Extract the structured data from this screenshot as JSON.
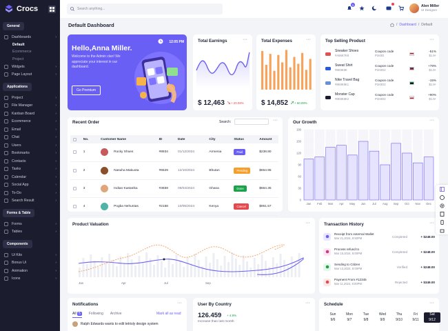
{
  "app": {
    "name": "Crocs"
  },
  "search": {
    "placeholder": "Search anything..."
  },
  "notifications_count": "5",
  "user": {
    "name": "Alen Miller",
    "role": "UI Designer"
  },
  "page": {
    "title": "Default Dashboard",
    "breadcrumb": [
      "Dashboard",
      "Default"
    ]
  },
  "sidebar": {
    "sections": [
      "General",
      "Applications",
      "Forms & Table",
      "Components"
    ],
    "general": [
      {
        "label": "Dashboards",
        "icon": "home-icon"
      },
      {
        "label": "Default",
        "sub": true,
        "active": true
      },
      {
        "label": "Ecommerce",
        "sub": true
      },
      {
        "label": "Project",
        "sub": true
      },
      {
        "label": "Widgets",
        "icon": "widgets-icon"
      },
      {
        "label": "Page Layout",
        "icon": "layout-icon"
      }
    ],
    "applications": [
      {
        "label": "Project"
      },
      {
        "label": "File Manager"
      },
      {
        "label": "Kanban Board"
      },
      {
        "label": "Ecommerce"
      },
      {
        "label": "Email"
      },
      {
        "label": "Chat"
      },
      {
        "label": "Users"
      },
      {
        "label": "Bookmarks"
      },
      {
        "label": "Contacts"
      },
      {
        "label": "Tasks"
      },
      {
        "label": "Calendar"
      },
      {
        "label": "Social App"
      },
      {
        "label": "To-Do"
      },
      {
        "label": "Search Result"
      }
    ],
    "forms": [
      {
        "label": "Forms"
      },
      {
        "label": "Tables"
      }
    ],
    "components": [
      {
        "label": "Ui Kits"
      },
      {
        "label": "Bonus Ui"
      },
      {
        "label": "Animation"
      },
      {
        "label": "Icons"
      }
    ]
  },
  "hello": {
    "title": "Hello,Anna Miller.",
    "text": "Welcome to the Admin clan! We appreciate your interest in our dashboard.",
    "button": "Go Premium",
    "time": "12:05 PM"
  },
  "earnings": {
    "title": "Total Earnings",
    "amount": "$ 12,463",
    "change": "+ 20.08%"
  },
  "expenses": {
    "title": "Total Expenses",
    "amount": "$ 14,852",
    "change": "+ 60.09%"
  },
  "expenses_bars": [
    78,
    50,
    72,
    38,
    70,
    55,
    80,
    45,
    66,
    52,
    74,
    40,
    62
  ],
  "top_selling": {
    "title": "Top Selling Product",
    "items": [
      {
        "name": "Sneaker Shoes",
        "sku": "#A56K7K8",
        "coupon": "Coupon code",
        "code": "P1K0D",
        "pct": "-51%",
        "price": "$1.9+"
      },
      {
        "name": "Sweat Shirt",
        "sku": "#8K8K8K",
        "coupon": "Coupon code",
        "code": "P1K0D2",
        "pct": "+78%",
        "price": "$1.9+"
      },
      {
        "name": "Nike Travel Bag",
        "sku": "#8K8K8K1",
        "coupon": "Coupon code",
        "code": "P1K0D2",
        "pct": "-15%",
        "price": "$1.9+"
      },
      {
        "name": "Monster Cap",
        "sku": "#8K8K8K2",
        "coupon": "Coupon code",
        "code": "P1K0D2",
        "pct": "+90%",
        "price": "$1.9+"
      }
    ]
  },
  "orders": {
    "title": "Recent Order",
    "search_label": "Search:",
    "headers": [
      "No.",
      "Customer Name",
      "ID",
      "Date",
      "City",
      "Status",
      "Amount"
    ],
    "rows": [
      {
        "no": "1",
        "name": "Rocky Shoes",
        "id": "#8934",
        "date": "01/12/2024",
        "city": "Armenia",
        "status": "Paid",
        "amount": "$238.80"
      },
      {
        "no": "2",
        "name": "Nasuha Makuota",
        "id": "#6529",
        "date": "12/10/2024",
        "city": "Bhutan",
        "status": "Pending",
        "amount": "$654.95"
      },
      {
        "no": "3",
        "name": "Indian Kastarika",
        "id": "#3659",
        "date": "09/04/2024",
        "city": "Ghana",
        "status": "Done",
        "amount": "$664.35"
      },
      {
        "no": "4",
        "name": "Pogba Nehuntas",
        "id": "#2158",
        "date": "10/05/2024",
        "city": "Kenya",
        "status": "Cancel",
        "amount": "$951.57"
      }
    ]
  },
  "growth": {
    "title": "Our Growth"
  },
  "valuation": {
    "title": "Product Valuation"
  },
  "transactions": {
    "title": "Transaction History",
    "items": [
      {
        "title": "Receipt from external Wallet",
        "date": "Mar 21,2024, 8:50PM",
        "status": "Completed",
        "amount": "+ $248.00"
      },
      {
        "title": "Process refund to",
        "date": "Mar 15,2024, 8:00PM",
        "status": "Completed",
        "amount": "+ $248.00"
      },
      {
        "title": "Sending to Citizen",
        "date": "Mar 13,2024, 8:00PM",
        "status": "Verified",
        "amount": "+ $248.00"
      },
      {
        "title": "Payment From #12345",
        "date": "Mar 11,2024, 8:00PM",
        "status": "Rejected",
        "amount": "+ $349.00"
      }
    ]
  },
  "notifications": {
    "title": "Notifications",
    "tabs": [
      "All",
      "Following",
      "Archive"
    ],
    "all_count": "5",
    "mark_read": "Mark all as read",
    "first": "Ralph Edwards wants to edit tetrisly design system"
  },
  "country": {
    "title": "User By Country",
    "value": "126.459",
    "change": "+ 4.9%",
    "subtitle": "Increase than last month"
  },
  "schedule": {
    "title": "Schedule",
    "days": [
      {
        "d": "Sun",
        "n": "9/6"
      },
      {
        "d": "Mon",
        "n": "9/7"
      },
      {
        "d": "Tue",
        "n": "9/8"
      },
      {
        "d": "Wed",
        "n": "9/9"
      },
      {
        "d": "Thu",
        "n": "9/10"
      },
      {
        "d": "Fri",
        "n": "9/11"
      },
      {
        "d": "Sat",
        "n": "9/12"
      }
    ]
  },
  "chart_data": [
    {
      "type": "bar",
      "title": "Our Growth",
      "categories": [
        "Jan",
        "Feb",
        "Mar",
        "Apr",
        "May",
        "Jun",
        "Jul",
        "Aug",
        "Sep",
        "Oct",
        "Nov",
        "Dec"
      ],
      "values": [
        105,
        110,
        135,
        140,
        115,
        150,
        125,
        90,
        145,
        120,
        95,
        110
      ],
      "ylim": [
        0,
        180
      ],
      "yticks": [
        0,
        30,
        60,
        90,
        120,
        150,
        180
      ]
    },
    {
      "type": "line",
      "title": "Product Valuation",
      "categories": [
        "Jan",
        "",
        "Apr",
        "",
        "Jul",
        "",
        "",
        "Sep",
        "",
        "",
        "",
        ""
      ]
    }
  ]
}
